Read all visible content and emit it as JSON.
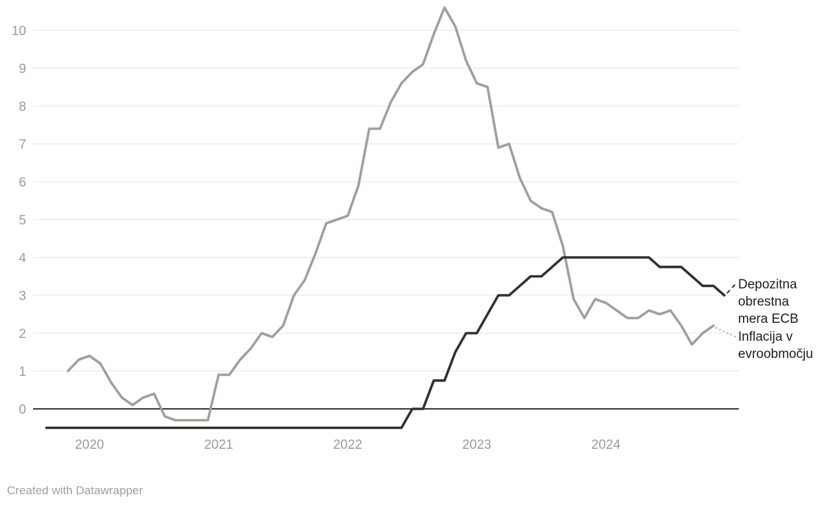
{
  "chart_data": {
    "type": "line",
    "title": "",
    "xlabel": "",
    "ylabel": "",
    "unit": "percent",
    "grid": "horizontal",
    "y_axis": {
      "ticks": [
        0,
        1,
        2,
        3,
        4,
        5,
        6,
        7,
        8,
        9,
        10
      ],
      "min": -0.7,
      "max": 10.6
    },
    "x_axis": {
      "ticks": [
        {
          "label": "2020",
          "month": "2020-01"
        },
        {
          "label": "2021",
          "month": "2021-01"
        },
        {
          "label": "2022",
          "month": "2022-01"
        },
        {
          "label": "2023",
          "month": "2023-01"
        },
        {
          "label": "2024",
          "month": "2024-01"
        }
      ]
    },
    "series": [
      {
        "id": "inflation",
        "name": "Inflacija v evroobmočju",
        "color": "#a49e98",
        "start": "2019-11",
        "values": [
          1.0,
          1.3,
          1.4,
          1.2,
          0.7,
          0.3,
          0.1,
          0.3,
          0.4,
          -0.2,
          -0.3,
          -0.3,
          -0.3,
          -0.3,
          0.9,
          0.9,
          1.3,
          1.6,
          2.0,
          1.9,
          2.2,
          3.0,
          3.4,
          4.1,
          4.9,
          5.0,
          5.1,
          5.9,
          7.4,
          7.4,
          8.1,
          8.6,
          8.9,
          9.1,
          9.9,
          10.6,
          10.1,
          9.2,
          8.6,
          8.5,
          6.9,
          7.0,
          6.1,
          5.5,
          5.3,
          5.2,
          4.3,
          2.9,
          2.4,
          2.9,
          2.8,
          2.6,
          2.4,
          2.4,
          2.6,
          2.5,
          2.6,
          2.2,
          1.7,
          2.0,
          2.2
        ]
      },
      {
        "id": "deposit_rate",
        "name": "Depozitna obrestna mera ECB",
        "color": "#332f2b",
        "start": "2019-09",
        "values": [
          -0.5,
          -0.5,
          -0.5,
          -0.5,
          -0.5,
          -0.5,
          -0.5,
          -0.5,
          -0.5,
          -0.5,
          -0.5,
          -0.5,
          -0.5,
          -0.5,
          -0.5,
          -0.5,
          -0.5,
          -0.5,
          -0.5,
          -0.5,
          -0.5,
          -0.5,
          -0.5,
          -0.5,
          -0.5,
          -0.5,
          -0.5,
          -0.5,
          -0.5,
          -0.5,
          -0.5,
          -0.5,
          -0.5,
          -0.5,
          0.0,
          0.0,
          0.75,
          0.75,
          1.5,
          2.0,
          2.0,
          2.5,
          3.0,
          3.0,
          3.25,
          3.5,
          3.5,
          3.75,
          4.0,
          4.0,
          4.0,
          4.0,
          4.0,
          4.0,
          4.0,
          4.0,
          4.0,
          3.75,
          3.75,
          3.75,
          3.5,
          3.25,
          3.25,
          3.0
        ]
      }
    ],
    "legend_position": "right-of-line-ends"
  },
  "legend": {
    "deposit_rate_label": "Depozitna obrestna mera ECB",
    "inflation_label": "Inflacija v evroobmočju"
  },
  "footer": {
    "attribution": "Created with Datawrapper"
  },
  "colors": {
    "deposit_rate_line": "#332f2b",
    "inflation_line": "#a49e98",
    "gridline": "#e3e3e3",
    "zero_line": "#181818",
    "axis_text": "#9b9b9b",
    "legend_text": "#1c1c1c",
    "background": "#ffffff"
  }
}
